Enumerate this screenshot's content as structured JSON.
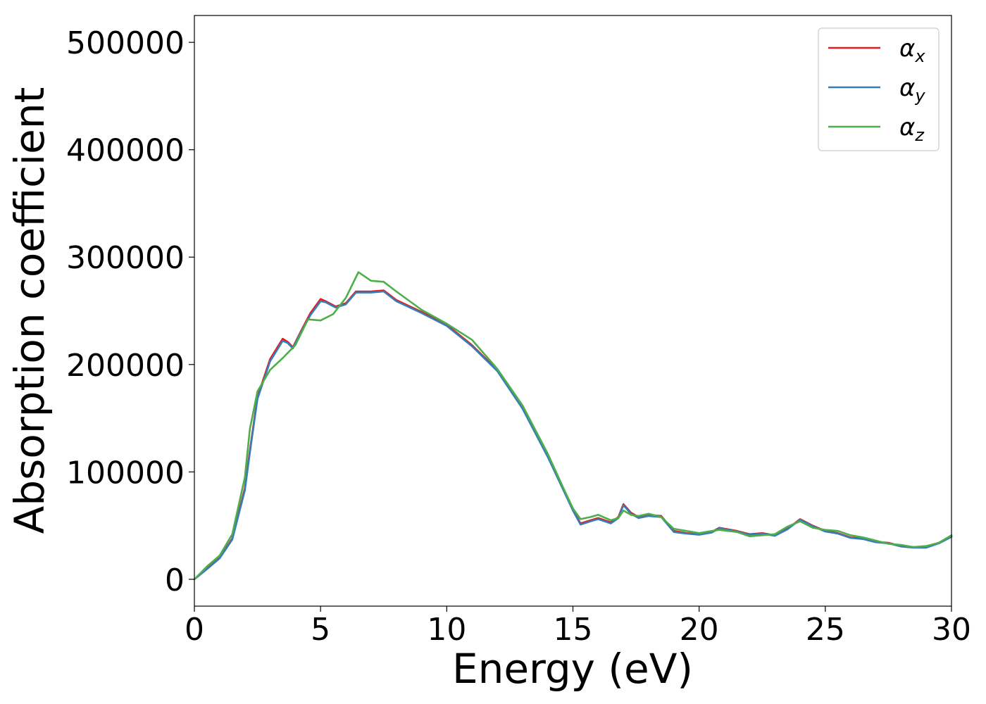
{
  "chart_data": {
    "type": "line",
    "xlabel": "Energy (eV)",
    "ylabel": "Absorption coefficient",
    "xlim": [
      0,
      30
    ],
    "ylim": [
      -25000,
      525000
    ],
    "x_ticks": [
      0,
      5,
      10,
      15,
      20,
      25,
      30
    ],
    "y_ticks": [
      0,
      100000,
      200000,
      300000,
      400000,
      500000
    ],
    "grid": false,
    "legend_position": "top-right",
    "series": [
      {
        "name": "α_x",
        "legend_base": "α",
        "legend_sub": "x",
        "color": "#e41a1c",
        "x": [
          0,
          0.5,
          1,
          1.5,
          2,
          2.2,
          2.5,
          3,
          3.5,
          3.7,
          3.9,
          4.2,
          4.6,
          5,
          5.2,
          5.6,
          6,
          6.4,
          7,
          7.5,
          8,
          9,
          10,
          11,
          12,
          13,
          14,
          14.6,
          15,
          15.3,
          15.7,
          16,
          16.5,
          16.8,
          17,
          17.3,
          17.6,
          18,
          18.5,
          19,
          19.5,
          20,
          20.5,
          20.8,
          21.5,
          22,
          22.5,
          23,
          23.5,
          24,
          24.5,
          25,
          25.5,
          26,
          26.5,
          27,
          27.5,
          28,
          28.5,
          29,
          29.5,
          30
        ],
        "values": [
          0,
          10000,
          20000,
          38000,
          85000,
          120000,
          170000,
          205000,
          224000,
          221000,
          216000,
          230000,
          248000,
          261000,
          259000,
          254000,
          257000,
          268000,
          268000,
          269000,
          260000,
          249000,
          237000,
          218000,
          195000,
          160000,
          115000,
          85000,
          65000,
          52000,
          55000,
          57000,
          53000,
          58000,
          70000,
          62000,
          58000,
          60000,
          59000,
          45000,
          43000,
          42000,
          44000,
          48000,
          45000,
          42000,
          43000,
          41000,
          47000,
          56000,
          50000,
          45000,
          43000,
          39000,
          38000,
          35000,
          34000,
          31000,
          30000,
          30000,
          34000,
          40000
        ]
      },
      {
        "name": "α_y",
        "legend_base": "α",
        "legend_sub": "y",
        "color": "#377eb8",
        "x": [
          0,
          0.5,
          1,
          1.5,
          2,
          2.2,
          2.5,
          3,
          3.5,
          3.7,
          3.9,
          4.2,
          4.6,
          5,
          5.2,
          5.6,
          6,
          6.4,
          7,
          7.5,
          8,
          9,
          10,
          11,
          12,
          13,
          14,
          14.6,
          15,
          15.3,
          15.7,
          16,
          16.5,
          16.8,
          17,
          17.3,
          17.6,
          18,
          18.5,
          19,
          19.5,
          20,
          20.5,
          20.8,
          21.5,
          22,
          22.5,
          23,
          23.5,
          24,
          24.5,
          25,
          25.5,
          26,
          26.5,
          27,
          27.5,
          28,
          28.5,
          29,
          29.5,
          30
        ],
        "values": [
          0,
          9500,
          19500,
          37000,
          83000,
          118000,
          168000,
          203000,
          222000,
          220000,
          215000,
          229000,
          246000,
          259000,
          258000,
          253000,
          256000,
          267000,
          267000,
          268000,
          259000,
          248000,
          236000,
          217000,
          194000,
          159000,
          114000,
          84000,
          64000,
          51000,
          54000,
          56000,
          52000,
          57000,
          69000,
          61000,
          57000,
          59000,
          58000,
          44000,
          42500,
          41500,
          43500,
          47500,
          44500,
          41500,
          42500,
          40500,
          46500,
          55500,
          49500,
          44500,
          42500,
          38500,
          37500,
          34500,
          33500,
          30500,
          29500,
          29500,
          33500,
          39500
        ]
      },
      {
        "name": "α_z",
        "legend_base": "α",
        "legend_sub": "z",
        "color": "#4daf4a",
        "x": [
          0,
          0.5,
          1,
          1.5,
          2,
          2.2,
          2.5,
          3,
          3.5,
          4,
          4.5,
          5,
          5.5,
          6,
          6.5,
          7,
          7.5,
          8,
          9,
          10,
          11,
          12,
          13,
          14,
          14.6,
          15,
          15.3,
          15.7,
          16,
          16.5,
          16.8,
          17,
          17.3,
          17.6,
          18,
          18.5,
          19,
          19.5,
          20,
          20.5,
          20.8,
          21.5,
          22,
          22.5,
          23,
          23.5,
          24,
          24.5,
          25,
          25.5,
          26,
          26.5,
          27,
          27.5,
          28,
          28.5,
          29,
          29.5,
          30
        ],
        "values": [
          0,
          12000,
          22000,
          42000,
          95000,
          140000,
          175000,
          195000,
          206000,
          218000,
          242000,
          241000,
          247000,
          262000,
          286000,
          278000,
          277000,
          268000,
          251000,
          238000,
          223000,
          196000,
          162000,
          117000,
          86000,
          66000,
          56000,
          58000,
          60000,
          55000,
          57000,
          64000,
          60000,
          59000,
          61000,
          58000,
          47000,
          45000,
          43000,
          45000,
          46000,
          44000,
          40000,
          41000,
          42000,
          49000,
          54000,
          48000,
          46000,
          45000,
          41000,
          39000,
          36000,
          33000,
          32000,
          30000,
          31000,
          34000,
          41000
        ]
      }
    ]
  }
}
